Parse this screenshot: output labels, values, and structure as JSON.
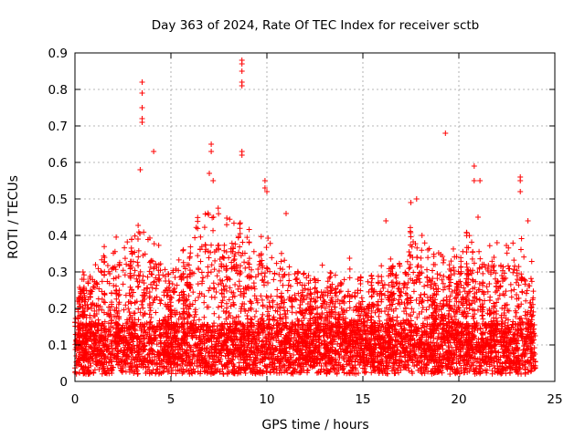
{
  "chart_data": {
    "type": "scatter",
    "title": "Day 363 of 2024, Rate Of TEC Index for receiver sctb",
    "xlabel": "GPS time / hours",
    "ylabel": "ROTI / TECUs",
    "xlim": [
      0,
      25
    ],
    "ylim": [
      0,
      0.9
    ],
    "x_ticks": [
      "0",
      "5",
      "10",
      "15",
      "20",
      "25"
    ],
    "y_ticks": [
      "0",
      "0.1",
      "0.2",
      "0.3",
      "0.4",
      "0.5",
      "0.6",
      "0.7",
      "0.8",
      "0.9"
    ],
    "grid": true,
    "marker": "+",
    "color": "#ff0000",
    "x_data_range": [
      0,
      24
    ],
    "peaks": [
      {
        "x": 3.5,
        "y": 0.82
      },
      {
        "x": 3.5,
        "y": 0.79
      },
      {
        "x": 3.5,
        "y": 0.75
      },
      {
        "x": 3.5,
        "y": 0.72
      },
      {
        "x": 3.5,
        "y": 0.71
      },
      {
        "x": 3.4,
        "y": 0.58
      },
      {
        "x": 4.1,
        "y": 0.63
      },
      {
        "x": 7.1,
        "y": 0.65
      },
      {
        "x": 7.1,
        "y": 0.63
      },
      {
        "x": 7.0,
        "y": 0.57
      },
      {
        "x": 7.2,
        "y": 0.55
      },
      {
        "x": 8.7,
        "y": 0.88
      },
      {
        "x": 8.7,
        "y": 0.87
      },
      {
        "x": 8.7,
        "y": 0.85
      },
      {
        "x": 8.7,
        "y": 0.82
      },
      {
        "x": 8.7,
        "y": 0.81
      },
      {
        "x": 8.7,
        "y": 0.63
      },
      {
        "x": 8.7,
        "y": 0.62
      },
      {
        "x": 9.9,
        "y": 0.55
      },
      {
        "x": 9.9,
        "y": 0.53
      },
      {
        "x": 10.0,
        "y": 0.52
      },
      {
        "x": 11.0,
        "y": 0.46
      },
      {
        "x": 16.2,
        "y": 0.44
      },
      {
        "x": 17.5,
        "y": 0.49
      },
      {
        "x": 17.8,
        "y": 0.5
      },
      {
        "x": 19.3,
        "y": 0.68
      },
      {
        "x": 20.8,
        "y": 0.59
      },
      {
        "x": 20.8,
        "y": 0.55
      },
      {
        "x": 21.1,
        "y": 0.55
      },
      {
        "x": 21.0,
        "y": 0.45
      },
      {
        "x": 23.2,
        "y": 0.56
      },
      {
        "x": 23.2,
        "y": 0.55
      },
      {
        "x": 23.2,
        "y": 0.52
      },
      {
        "x": 23.6,
        "y": 0.44
      }
    ],
    "activity_envelope": [
      {
        "x": 0,
        "y": 0.27
      },
      {
        "x": 1,
        "y": 0.32
      },
      {
        "x": 2,
        "y": 0.38
      },
      {
        "x": 3,
        "y": 0.4
      },
      {
        "x": 4,
        "y": 0.45
      },
      {
        "x": 5,
        "y": 0.3
      },
      {
        "x": 6,
        "y": 0.42
      },
      {
        "x": 7,
        "y": 0.5
      },
      {
        "x": 8,
        "y": 0.45
      },
      {
        "x": 9,
        "y": 0.45
      },
      {
        "x": 10,
        "y": 0.42
      },
      {
        "x": 11,
        "y": 0.35
      },
      {
        "x": 12,
        "y": 0.3
      },
      {
        "x": 13,
        "y": 0.3
      },
      {
        "x": 14,
        "y": 0.3
      },
      {
        "x": 15,
        "y": 0.28
      },
      {
        "x": 16,
        "y": 0.3
      },
      {
        "x": 17,
        "y": 0.35
      },
      {
        "x": 18,
        "y": 0.42
      },
      {
        "x": 19,
        "y": 0.35
      },
      {
        "x": 20,
        "y": 0.35
      },
      {
        "x": 21,
        "y": 0.4
      },
      {
        "x": 22,
        "y": 0.38
      },
      {
        "x": 23,
        "y": 0.4
      },
      {
        "x": 24,
        "y": 0.3
      }
    ]
  }
}
